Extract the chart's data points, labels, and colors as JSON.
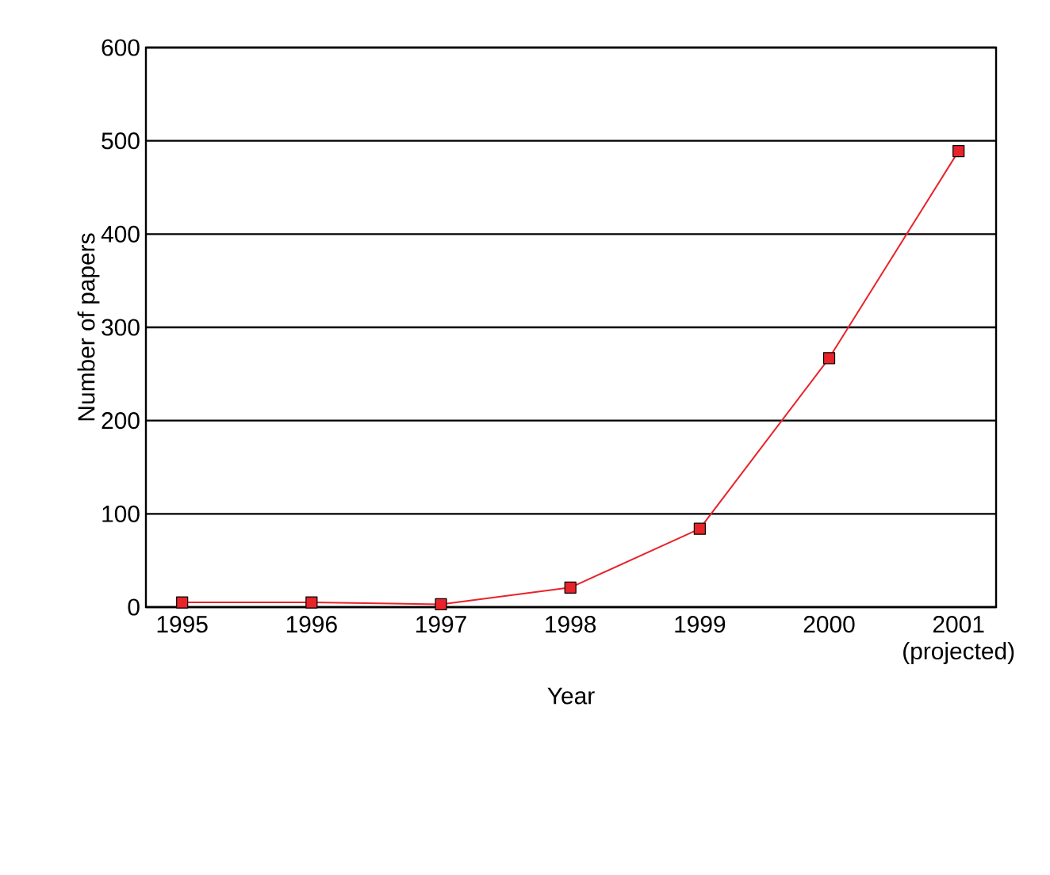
{
  "chart_data": {
    "type": "line",
    "xlabel": "Year",
    "ylabel": "Number of papers",
    "categories": [
      "1995",
      "1996",
      "1997",
      "1998",
      "1999",
      "2000",
      "2001 (projected)"
    ],
    "values": [
      5,
      5,
      3,
      21,
      84,
      267,
      489
    ],
    "color": "#e8232a",
    "marker": "square",
    "line_style": "solid",
    "ylim": [
      0,
      600
    ],
    "yticks": [
      0,
      100,
      200,
      300,
      400,
      500,
      600
    ],
    "grid": "y"
  }
}
